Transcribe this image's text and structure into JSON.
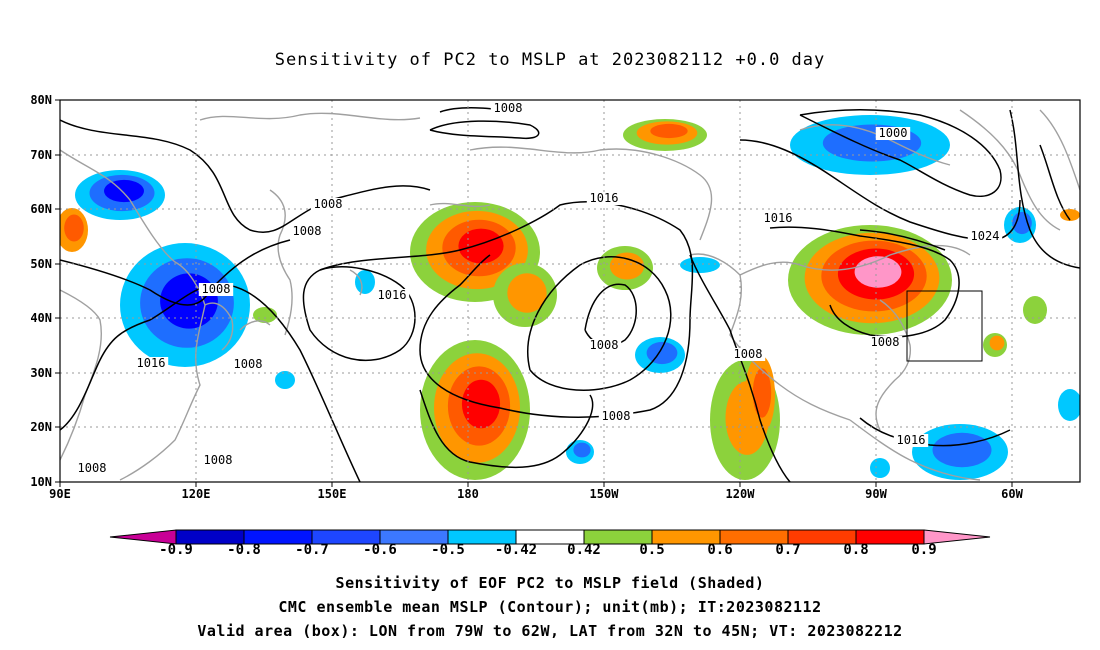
{
  "title": "Sensitivity of PC2 to MSLP at 2023082112 +0.0 day",
  "map": {
    "lon_labels": [
      "90E",
      "120E",
      "150E",
      "180",
      "150W",
      "120W",
      "90W",
      "60W"
    ],
    "lat_labels": [
      "80N",
      "70N",
      "60N",
      "50N",
      "40N",
      "30N",
      "20N",
      "10N"
    ],
    "contour_labels": [
      "1008",
      "1000",
      "1016",
      "1008",
      "1008",
      "1016",
      "1024",
      "1016",
      "1008",
      "1016",
      "1008",
      "1008",
      "1008",
      "1008",
      "1008",
      "1016",
      "1008",
      "1008"
    ],
    "colors": {
      "deep_neg": "#0000ff",
      "neg": "#1e6eff",
      "light_neg": "#00c8ff",
      "light_pos": "#8cd23c",
      "mid_pos": "#ff9600",
      "pos": "#ff5a00",
      "strong_pos": "#ff0000",
      "max_pos": "#ff96c8",
      "contour": "#000000",
      "coast": "#a0a0a0"
    }
  },
  "colorbar": {
    "labels": [
      "-0.9",
      "-0.8",
      "-0.7",
      "-0.6",
      "-0.5",
      "-0.42",
      "0.42",
      "0.5",
      "0.6",
      "0.7",
      "0.8",
      "0.9"
    ],
    "colors": [
      "#c80096",
      "#0000c8",
      "#0014ff",
      "#1e46ff",
      "#3c78ff",
      "#00c8ff",
      "#ffffff",
      "#8cd23c",
      "#ff9600",
      "#ff6e00",
      "#ff3c00",
      "#ff0000",
      "#ff96c8"
    ]
  },
  "captions": [
    "Sensitivity of EOF PC2 to MSLP field (Shaded)",
    "CMC ensemble mean MSLP (Contour); unit(mb); IT:2023082112",
    "Valid area (box): LON from 79W to 62W, LAT from 32N to 45N; VT: 2023082212"
  ]
}
